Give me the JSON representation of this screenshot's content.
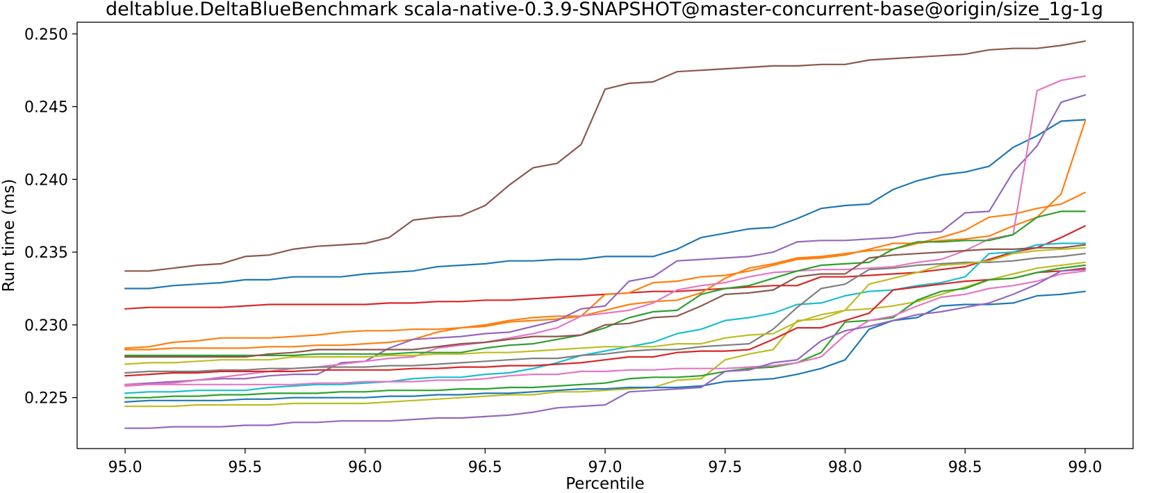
{
  "chart_data": {
    "type": "line",
    "title": "deltablue.DeltaBlueBenchmark scala-native-0.3.9-SNAPSHOT@master-concurrent-base@origin/size_1g-1g",
    "xlabel": "Percentile",
    "ylabel": "Run time (ms)",
    "xlim": [
      94.8,
      99.2
    ],
    "ylim": [
      0.2215,
      0.2508
    ],
    "x_ticks": [
      "95.0",
      "95.5",
      "96.0",
      "96.5",
      "97.0",
      "97.5",
      "98.0",
      "98.5",
      "99.0"
    ],
    "y_ticks": [
      "0.225",
      "0.230",
      "0.235",
      "0.240",
      "0.245",
      "0.250"
    ],
    "grid": false,
    "legend": "none",
    "x": [
      95.0,
      95.1,
      95.2,
      95.3,
      95.4,
      95.5,
      95.6,
      95.7,
      95.8,
      95.9,
      96.0,
      96.1,
      96.2,
      96.3,
      96.4,
      96.5,
      96.6,
      96.7,
      96.8,
      96.9,
      97.0,
      97.1,
      97.2,
      97.3,
      97.4,
      97.5,
      97.6,
      97.7,
      97.8,
      97.9,
      98.0,
      98.1,
      98.2,
      98.3,
      98.4,
      98.5,
      98.6,
      98.7,
      98.8,
      98.9,
      99.0
    ],
    "series": [
      {
        "color": "#8c564b",
        "values": [
          0.2337,
          0.2337,
          0.2339,
          0.2341,
          0.2342,
          0.2347,
          0.2348,
          0.2352,
          0.2354,
          0.2355,
          0.2356,
          0.236,
          0.2372,
          0.2374,
          0.2375,
          0.2382,
          0.2396,
          0.2408,
          0.2411,
          0.2424,
          0.2462,
          0.2466,
          0.2467,
          0.2474,
          0.2475,
          0.2476,
          0.2477,
          0.2478,
          0.2478,
          0.2479,
          0.2479,
          0.2482,
          0.2483,
          0.2484,
          0.2485,
          0.2486,
          0.2489,
          0.249,
          0.249,
          0.2492,
          0.2495
        ]
      },
      {
        "color": "#1f77b4",
        "values": [
          0.2325,
          0.2325,
          0.2327,
          0.2328,
          0.2329,
          0.2331,
          0.2331,
          0.2333,
          0.2333,
          0.2333,
          0.2335,
          0.2336,
          0.2337,
          0.234,
          0.2341,
          0.2342,
          0.2344,
          0.2344,
          0.2345,
          0.2345,
          0.2347,
          0.2347,
          0.2347,
          0.2352,
          0.236,
          0.2363,
          0.2366,
          0.2367,
          0.2373,
          0.238,
          0.2382,
          0.2383,
          0.2393,
          0.2399,
          0.2403,
          0.2405,
          0.2409,
          0.2422,
          0.243,
          0.244,
          0.2441
        ]
      },
      {
        "color": "#d62728",
        "values": [
          0.2311,
          0.2312,
          0.2312,
          0.2312,
          0.2312,
          0.2313,
          0.2314,
          0.2314,
          0.2314,
          0.2314,
          0.2314,
          0.2315,
          0.2315,
          0.2316,
          0.2316,
          0.2317,
          0.2317,
          0.2318,
          0.2319,
          0.232,
          0.2321,
          0.2322,
          0.2323,
          0.2323,
          0.2324,
          0.2325,
          0.2326,
          0.2327,
          0.2327,
          0.2333,
          0.2333,
          0.2334,
          0.2335,
          0.2336,
          0.2338,
          0.234,
          0.2345,
          0.235,
          0.2353,
          0.236,
          0.2368
        ]
      },
      {
        "color": "#ff7f0e",
        "values": [
          0.2284,
          0.2285,
          0.2288,
          0.2289,
          0.2291,
          0.2291,
          0.2291,
          0.2292,
          0.2293,
          0.2295,
          0.2296,
          0.2296,
          0.2297,
          0.2297,
          0.2298,
          0.23,
          0.2303,
          0.2305,
          0.2306,
          0.2306,
          0.2321,
          0.2322,
          0.2329,
          0.233,
          0.2333,
          0.2334,
          0.2337,
          0.2341,
          0.2345,
          0.2346,
          0.2348,
          0.2352,
          0.2356,
          0.2356,
          0.2358,
          0.2359,
          0.2361,
          0.2368,
          0.2374,
          0.239,
          0.244
        ]
      },
      {
        "color": "#ff7f0e",
        "values": [
          0.2283,
          0.2283,
          0.2284,
          0.2284,
          0.2284,
          0.2284,
          0.2285,
          0.2285,
          0.2286,
          0.2286,
          0.2287,
          0.2288,
          0.229,
          0.2295,
          0.2298,
          0.2299,
          0.2302,
          0.2303,
          0.2304,
          0.2306,
          0.231,
          0.2314,
          0.2316,
          0.2317,
          0.2322,
          0.2332,
          0.2339,
          0.2342,
          0.2346,
          0.2347,
          0.2349,
          0.2351,
          0.2352,
          0.2356,
          0.236,
          0.2365,
          0.2374,
          0.2376,
          0.238,
          0.2383,
          0.2391
        ]
      },
      {
        "color": "#9467bd",
        "values": [
          0.2259,
          0.226,
          0.2261,
          0.2262,
          0.2263,
          0.2263,
          0.2265,
          0.2266,
          0.2266,
          0.2274,
          0.2275,
          0.2284,
          0.229,
          0.2291,
          0.2292,
          0.2294,
          0.2295,
          0.2299,
          0.2303,
          0.2311,
          0.2313,
          0.233,
          0.2333,
          0.2344,
          0.2345,
          0.2346,
          0.2347,
          0.235,
          0.2357,
          0.2358,
          0.2358,
          0.2359,
          0.236,
          0.2363,
          0.2364,
          0.2377,
          0.2378,
          0.2405,
          0.2423,
          0.2453,
          0.2458
        ]
      },
      {
        "color": "#e377c2",
        "values": [
          0.2258,
          0.2259,
          0.226,
          0.2262,
          0.2264,
          0.2266,
          0.2268,
          0.227,
          0.2271,
          0.2273,
          0.2275,
          0.2277,
          0.2278,
          0.2284,
          0.2286,
          0.2288,
          0.2291,
          0.2294,
          0.2298,
          0.2306,
          0.2308,
          0.231,
          0.2315,
          0.2324,
          0.2327,
          0.2329,
          0.2333,
          0.2336,
          0.2337,
          0.2338,
          0.2338,
          0.2339,
          0.234,
          0.2343,
          0.2345,
          0.2351,
          0.2359,
          0.2362,
          0.2461,
          0.2468,
          0.2471
        ]
      },
      {
        "color": "#2ca02c",
        "values": [
          0.2279,
          0.2279,
          0.2279,
          0.2279,
          0.2279,
          0.2279,
          0.2279,
          0.2279,
          0.228,
          0.228,
          0.228,
          0.228,
          0.2281,
          0.2281,
          0.2281,
          0.2284,
          0.2286,
          0.2287,
          0.229,
          0.2293,
          0.2298,
          0.2305,
          0.2309,
          0.231,
          0.2321,
          0.2325,
          0.2327,
          0.2332,
          0.2337,
          0.2341,
          0.2342,
          0.2343,
          0.2352,
          0.2357,
          0.2357,
          0.2358,
          0.2358,
          0.2362,
          0.2374,
          0.2378,
          0.2378
        ]
      },
      {
        "color": "#17becf",
        "values": [
          0.2253,
          0.2254,
          0.2254,
          0.2255,
          0.2255,
          0.2255,
          0.2257,
          0.2258,
          0.2259,
          0.2259,
          0.226,
          0.2261,
          0.2263,
          0.2264,
          0.2264,
          0.2266,
          0.2267,
          0.227,
          0.2274,
          0.2279,
          0.2282,
          0.2285,
          0.2288,
          0.2294,
          0.2297,
          0.2303,
          0.2305,
          0.2308,
          0.2314,
          0.2315,
          0.232,
          0.2323,
          0.2324,
          0.2327,
          0.2329,
          0.2333,
          0.2349,
          0.235,
          0.2355,
          0.2356,
          0.2356
        ]
      },
      {
        "color": "#7f7f7f",
        "values": [
          0.2267,
          0.2268,
          0.2268,
          0.2268,
          0.2269,
          0.2269,
          0.227,
          0.227,
          0.2271,
          0.2271,
          0.2271,
          0.2272,
          0.2272,
          0.2273,
          0.2274,
          0.2275,
          0.2276,
          0.2277,
          0.2277,
          0.2279,
          0.228,
          0.2282,
          0.2283,
          0.2283,
          0.2285,
          0.2286,
          0.2287,
          0.2297,
          0.2312,
          0.2325,
          0.2328,
          0.2338,
          0.2339,
          0.2341,
          0.2342,
          0.2343,
          0.2343,
          0.2344,
          0.2346,
          0.2347,
          0.2349
        ]
      },
      {
        "color": "#bcbd22",
        "values": [
          0.2244,
          0.2244,
          0.2244,
          0.2245,
          0.2245,
          0.2245,
          0.2245,
          0.2246,
          0.2246,
          0.2246,
          0.2246,
          0.2247,
          0.2248,
          0.2249,
          0.225,
          0.2251,
          0.2252,
          0.2252,
          0.2254,
          0.2254,
          0.2255,
          0.2256,
          0.2257,
          0.2262,
          0.2263,
          0.2276,
          0.228,
          0.2283,
          0.2303,
          0.2304,
          0.231,
          0.2328,
          0.2332,
          0.2336,
          0.2341,
          0.2342,
          0.2344,
          0.2349,
          0.2351,
          0.2352,
          0.2353
        ]
      },
      {
        "color": "#8c564b",
        "values": [
          0.2278,
          0.2278,
          0.2278,
          0.2278,
          0.2278,
          0.2278,
          0.228,
          0.2281,
          0.2283,
          0.2283,
          0.2283,
          0.2283,
          0.2283,
          0.2285,
          0.2287,
          0.2288,
          0.229,
          0.2292,
          0.2292,
          0.2293,
          0.23,
          0.2301,
          0.2305,
          0.2306,
          0.2313,
          0.2321,
          0.2322,
          0.2324,
          0.2333,
          0.2335,
          0.2335,
          0.2346,
          0.2348,
          0.2349,
          0.235,
          0.2351,
          0.2352,
          0.2352,
          0.2353,
          0.2353,
          0.2355
        ]
      },
      {
        "color": "#bcbd22",
        "values": [
          0.2273,
          0.2274,
          0.2274,
          0.2275,
          0.2276,
          0.2276,
          0.2276,
          0.2278,
          0.2278,
          0.2278,
          0.2278,
          0.2279,
          0.2279,
          0.228,
          0.228,
          0.2281,
          0.2281,
          0.2282,
          0.2283,
          0.2284,
          0.2285,
          0.2285,
          0.2285,
          0.2287,
          0.2287,
          0.2291,
          0.2293,
          0.2294,
          0.2302,
          0.2307,
          0.231,
          0.2311,
          0.2313,
          0.2316,
          0.2321,
          0.2326,
          0.2331,
          0.2335,
          0.2339,
          0.2341,
          0.2343
        ]
      },
      {
        "color": "#d62728",
        "values": [
          0.2265,
          0.2266,
          0.2267,
          0.2267,
          0.2268,
          0.2268,
          0.2268,
          0.2268,
          0.2269,
          0.2269,
          0.2269,
          0.2269,
          0.227,
          0.227,
          0.2271,
          0.2271,
          0.2272,
          0.2272,
          0.2273,
          0.2274,
          0.2276,
          0.2278,
          0.2278,
          0.2281,
          0.2282,
          0.2282,
          0.2283,
          0.229,
          0.2298,
          0.2298,
          0.2303,
          0.2308,
          0.2324,
          0.2326,
          0.2328,
          0.233,
          0.2331,
          0.2332,
          0.2336,
          0.2337,
          0.2339
        ]
      },
      {
        "color": "#2ca02c",
        "values": [
          0.225,
          0.225,
          0.2251,
          0.2251,
          0.2252,
          0.2252,
          0.2253,
          0.2253,
          0.2253,
          0.2254,
          0.2254,
          0.2255,
          0.2255,
          0.2255,
          0.2256,
          0.2256,
          0.2257,
          0.2257,
          0.2258,
          0.2259,
          0.226,
          0.2263,
          0.2264,
          0.2264,
          0.2265,
          0.2268,
          0.227,
          0.2271,
          0.2274,
          0.2281,
          0.2302,
          0.2303,
          0.2305,
          0.2317,
          0.2323,
          0.2325,
          0.2331,
          0.2332,
          0.2336,
          0.2339,
          0.2341
        ]
      },
      {
        "color": "#e377c2",
        "values": [
          0.2259,
          0.2259,
          0.2259,
          0.2259,
          0.2259,
          0.2259,
          0.2259,
          0.2259,
          0.226,
          0.226,
          0.2261,
          0.2261,
          0.2261,
          0.2262,
          0.2262,
          0.2263,
          0.2265,
          0.2266,
          0.2266,
          0.2268,
          0.2268,
          0.2269,
          0.2269,
          0.227,
          0.227,
          0.227,
          0.2271,
          0.2272,
          0.2274,
          0.2278,
          0.2293,
          0.2303,
          0.2306,
          0.2313,
          0.2319,
          0.2321,
          0.2325,
          0.2327,
          0.233,
          0.2335,
          0.2337
        ]
      },
      {
        "color": "#1f77b4",
        "values": [
          0.2247,
          0.2248,
          0.2248,
          0.2248,
          0.2248,
          0.2249,
          0.2249,
          0.225,
          0.225,
          0.225,
          0.225,
          0.2251,
          0.2251,
          0.2252,
          0.2252,
          0.2253,
          0.2253,
          0.2254,
          0.2255,
          0.2256,
          0.2256,
          0.2257,
          0.2257,
          0.2257,
          0.2258,
          0.2261,
          0.2262,
          0.2263,
          0.2266,
          0.227,
          0.2276,
          0.2297,
          0.2303,
          0.2305,
          0.2313,
          0.2314,
          0.2314,
          0.2315,
          0.232,
          0.2321,
          0.2323
        ]
      },
      {
        "color": "#9467bd",
        "values": [
          0.2229,
          0.2229,
          0.223,
          0.223,
          0.223,
          0.2231,
          0.2231,
          0.2233,
          0.2233,
          0.2234,
          0.2234,
          0.2234,
          0.2235,
          0.2236,
          0.2236,
          0.2237,
          0.2238,
          0.224,
          0.2243,
          0.2244,
          0.2245,
          0.2254,
          0.2255,
          0.2256,
          0.2257,
          0.2268,
          0.2269,
          0.2274,
          0.2276,
          0.2289,
          0.2296,
          0.2299,
          0.2303,
          0.2307,
          0.2309,
          0.2312,
          0.2315,
          0.2321,
          0.2328,
          0.2337,
          0.2338
        ]
      }
    ]
  }
}
